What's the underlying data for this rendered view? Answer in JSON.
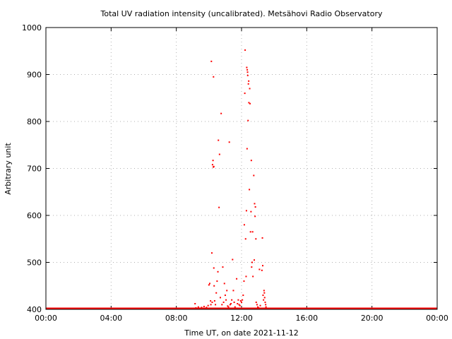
{
  "chart_data": {
    "type": "scatter",
    "title": "Total UV radiation intensity (uncalibrated). Metsähovi Radio Observatory",
    "xlabel": "Time UT, on date 2021-11-12",
    "ylabel": "Arbitrary unit",
    "xlim": [
      0,
      24
    ],
    "ylim": [
      400,
      1000
    ],
    "x_ticks": [
      0,
      4,
      8,
      12,
      16,
      20,
      24
    ],
    "x_tick_labels": [
      "00:00",
      "04:00",
      "08:00",
      "12:00",
      "16:00",
      "20:00",
      "00:00"
    ],
    "y_ticks": [
      400,
      500,
      600,
      700,
      800,
      900,
      1000
    ],
    "y_tick_labels": [
      "400",
      "500",
      "600",
      "700",
      "800",
      "900",
      "1000"
    ],
    "grid": true,
    "marker_color": "#ff0000",
    "baseline": {
      "y": 400,
      "x_start": 0,
      "x_end": 24
    },
    "series": [
      {
        "points": [
          [
            9.15,
            412
          ],
          [
            9.2,
            403
          ],
          [
            9.35,
            405
          ],
          [
            9.55,
            404
          ],
          [
            9.7,
            406
          ],
          [
            9.85,
            404
          ],
          [
            9.95,
            408
          ],
          [
            10.0,
            452
          ],
          [
            10.05,
            455
          ],
          [
            10.1,
            418
          ],
          [
            10.12,
            410
          ],
          [
            10.15,
            928
          ],
          [
            10.18,
            520
          ],
          [
            10.2,
            415
          ],
          [
            10.22,
            708
          ],
          [
            10.25,
            717
          ],
          [
            10.27,
            703
          ],
          [
            10.3,
            704
          ],
          [
            10.28,
            895
          ],
          [
            10.3,
            488
          ],
          [
            10.32,
            450
          ],
          [
            10.35,
            418
          ],
          [
            10.4,
            410
          ],
          [
            10.45,
            435
          ],
          [
            10.5,
            460
          ],
          [
            10.55,
            480
          ],
          [
            10.58,
            760
          ],
          [
            10.62,
            617
          ],
          [
            10.65,
            730
          ],
          [
            10.7,
            425
          ],
          [
            10.75,
            817
          ],
          [
            10.8,
            410
          ],
          [
            10.85,
            490
          ],
          [
            10.9,
            415
          ],
          [
            10.95,
            455
          ],
          [
            11.0,
            430
          ],
          [
            11.05,
            420
          ],
          [
            11.1,
            440
          ],
          [
            11.15,
            407
          ],
          [
            11.2,
            405
          ],
          [
            11.25,
            756
          ],
          [
            11.3,
            410
          ],
          [
            11.35,
            412
          ],
          [
            11.4,
            420
          ],
          [
            11.45,
            506
          ],
          [
            11.5,
            440
          ],
          [
            11.55,
            415
          ],
          [
            11.6,
            405
          ],
          [
            11.7,
            465
          ],
          [
            11.75,
            412
          ],
          [
            11.8,
            420
          ],
          [
            11.85,
            410
          ],
          [
            11.9,
            408
          ],
          [
            11.95,
            418
          ],
          [
            12.0,
            415
          ],
          [
            12.05,
            420
          ],
          [
            12.1,
            430
          ],
          [
            12.15,
            460
          ],
          [
            12.17,
            580
          ],
          [
            12.2,
            860
          ],
          [
            12.22,
            952
          ],
          [
            12.25,
            550
          ],
          [
            12.28,
            470
          ],
          [
            12.3,
            610
          ],
          [
            12.32,
            915
          ],
          [
            12.34,
            742
          ],
          [
            12.35,
            910
          ],
          [
            12.37,
            905
          ],
          [
            12.38,
            898
          ],
          [
            12.4,
            802
          ],
          [
            12.42,
            880
          ],
          [
            12.44,
            886
          ],
          [
            12.45,
            840
          ],
          [
            12.48,
            655
          ],
          [
            12.5,
            870
          ],
          [
            12.52,
            838
          ],
          [
            12.55,
            565
          ],
          [
            12.58,
            608
          ],
          [
            12.6,
            717
          ],
          [
            12.62,
            490
          ],
          [
            12.65,
            500
          ],
          [
            12.68,
            565
          ],
          [
            12.7,
            470
          ],
          [
            12.75,
            685
          ],
          [
            12.78,
            505
          ],
          [
            12.8,
            625
          ],
          [
            12.83,
            598
          ],
          [
            12.85,
            618
          ],
          [
            12.88,
            550
          ],
          [
            12.9,
            415
          ],
          [
            12.95,
            410
          ],
          [
            13.0,
            405
          ],
          [
            13.05,
            403
          ],
          [
            13.1,
            485
          ],
          [
            13.15,
            408
          ],
          [
            13.2,
            402
          ],
          [
            13.25,
            483
          ],
          [
            13.28,
            552
          ],
          [
            13.3,
            493
          ],
          [
            13.32,
            430
          ],
          [
            13.35,
            420
          ],
          [
            13.38,
            440
          ],
          [
            13.4,
            435
          ],
          [
            13.42,
            425
          ],
          [
            13.45,
            415
          ],
          [
            13.48,
            410
          ],
          [
            13.5,
            405
          ]
        ]
      }
    ]
  }
}
